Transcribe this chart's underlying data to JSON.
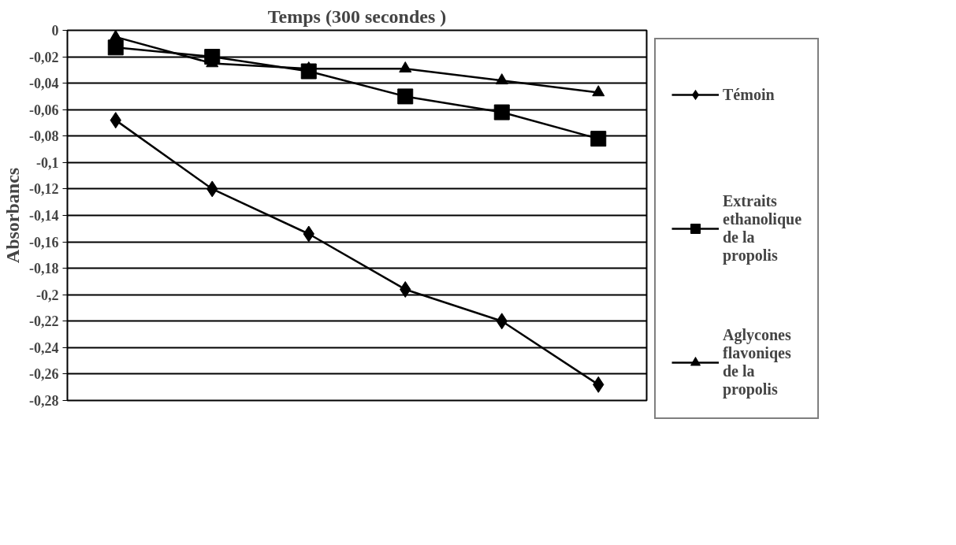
{
  "chart_data": {
    "type": "line",
    "title": "Temps (300 secondes )",
    "ylabel": "Absorbancs",
    "categories": [
      null,
      null,
      null,
      null,
      null,
      null
    ],
    "series": [
      {
        "name": "Témoin",
        "color": "#000000",
        "marker": "diamond",
        "values": [
          -0.068,
          -0.12,
          -0.154,
          -0.196,
          -0.22,
          -0.268
        ]
      },
      {
        "name": "Extraits ethanolique de la propolis",
        "color": "#000000",
        "marker": "square",
        "values": [
          -0.013,
          -0.02,
          -0.031,
          -0.05,
          -0.062,
          -0.082
        ]
      },
      {
        "name": "Aglycones flavoniqes de la propolis",
        "color": "#000000",
        "marker": "triangle",
        "values": [
          -0.005,
          -0.025,
          -0.029,
          -0.029,
          -0.038,
          -0.047
        ]
      }
    ],
    "ylim": [
      -0.28,
      0
    ],
    "yticks": [
      0,
      {
        "value": -0.02,
        "label": "-0,02"
      },
      {
        "value": -0.04,
        "label": "-0,04"
      },
      {
        "value": -0.06,
        "label": "-0,06"
      },
      {
        "value": -0.08,
        "label": "-0,08"
      },
      {
        "value": -0.1,
        "label": "-0,1"
      },
      {
        "value": -0.12,
        "label": "-0,12"
      },
      {
        "value": -0.14,
        "label": "-0,14"
      },
      {
        "value": -0.16,
        "label": "-0,16"
      },
      {
        "value": -0.18,
        "label": "-0,18"
      },
      {
        "value": -0.2,
        "label": "-0,2"
      },
      {
        "value": -0.22,
        "label": "-0,22"
      },
      {
        "value": -0.24,
        "label": "-0,24"
      },
      {
        "value": -0.26,
        "label": "-0,26"
      },
      {
        "value": -0.28,
        "label": "-0,28"
      }
    ],
    "grid": "y",
    "legend": "right",
    "tick_labels": "y",
    "line_style": "solid"
  }
}
